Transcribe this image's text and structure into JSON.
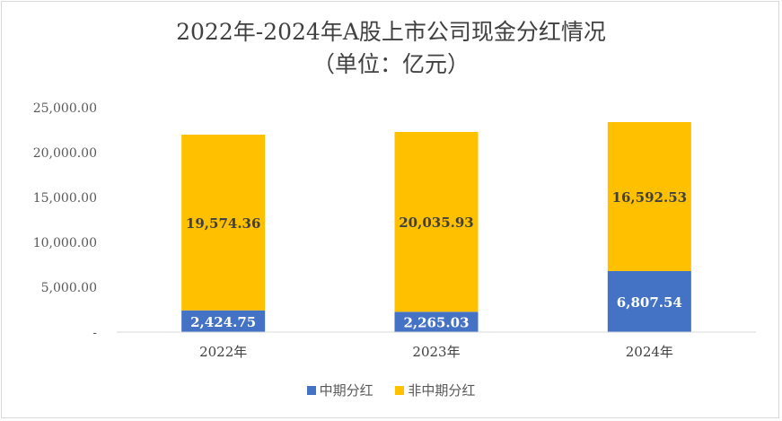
{
  "chart_data": {
    "type": "bar",
    "stacked": true,
    "title_lines": [
      "2022年-2024年A股上市公司现金分红情况",
      "（单位：亿元）"
    ],
    "categories": [
      "2022年",
      "2023年",
      "2024年"
    ],
    "series": [
      {
        "name": "中期分红",
        "color": "#4472C4",
        "values": [
          2424.75,
          2265.03,
          6807.54
        ],
        "labels": [
          "2,424.75",
          "2,265.03",
          "6,807.54"
        ],
        "label_color": "#ffffff"
      },
      {
        "name": "非中期分红",
        "color": "#FFC000",
        "values": [
          19574.36,
          20035.93,
          16592.53
        ],
        "labels": [
          "19,574.36",
          "20,035.93",
          "16,592.53"
        ],
        "label_color": "#404040"
      }
    ],
    "ylim": [
      0,
      25000
    ],
    "yticks": [
      0,
      5000,
      10000,
      15000,
      20000,
      25000
    ],
    "ytick_labels": [
      "-",
      "5,000.00",
      "10,000.00",
      "15,000.00",
      "20,000.00",
      "25,000.00"
    ],
    "legend_position": "bottom",
    "grid": false
  }
}
